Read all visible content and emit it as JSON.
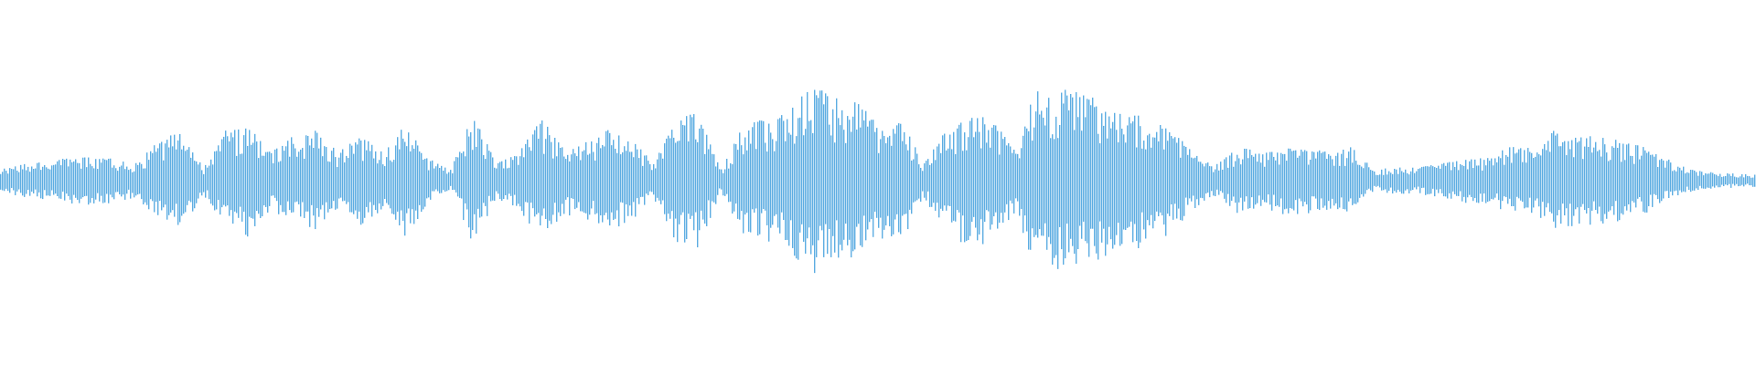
{
  "waveform": {
    "color": "#5dade2",
    "background": "#ffffff",
    "envelope_percent": [
      11,
      17,
      20,
      22,
      24,
      22,
      17,
      39,
      50,
      13,
      50,
      56,
      28,
      44,
      50,
      28,
      44,
      28,
      56,
      22,
      11,
      67,
      17,
      28,
      61,
      33,
      39,
      50,
      44,
      17,
      61,
      67,
      11,
      56,
      61,
      67,
      94,
      83,
      78,
      56,
      61,
      17,
      50,
      67,
      61,
      33,
      89,
      89,
      89,
      78,
      67,
      67,
      50,
      28,
      17,
      33,
      28,
      33,
      33,
      28,
      33,
      11,
      13,
      13,
      17,
      22,
      22,
      33,
      33,
      50,
      44,
      44,
      39,
      33,
      22,
      11,
      9,
      7,
      6
    ]
  }
}
